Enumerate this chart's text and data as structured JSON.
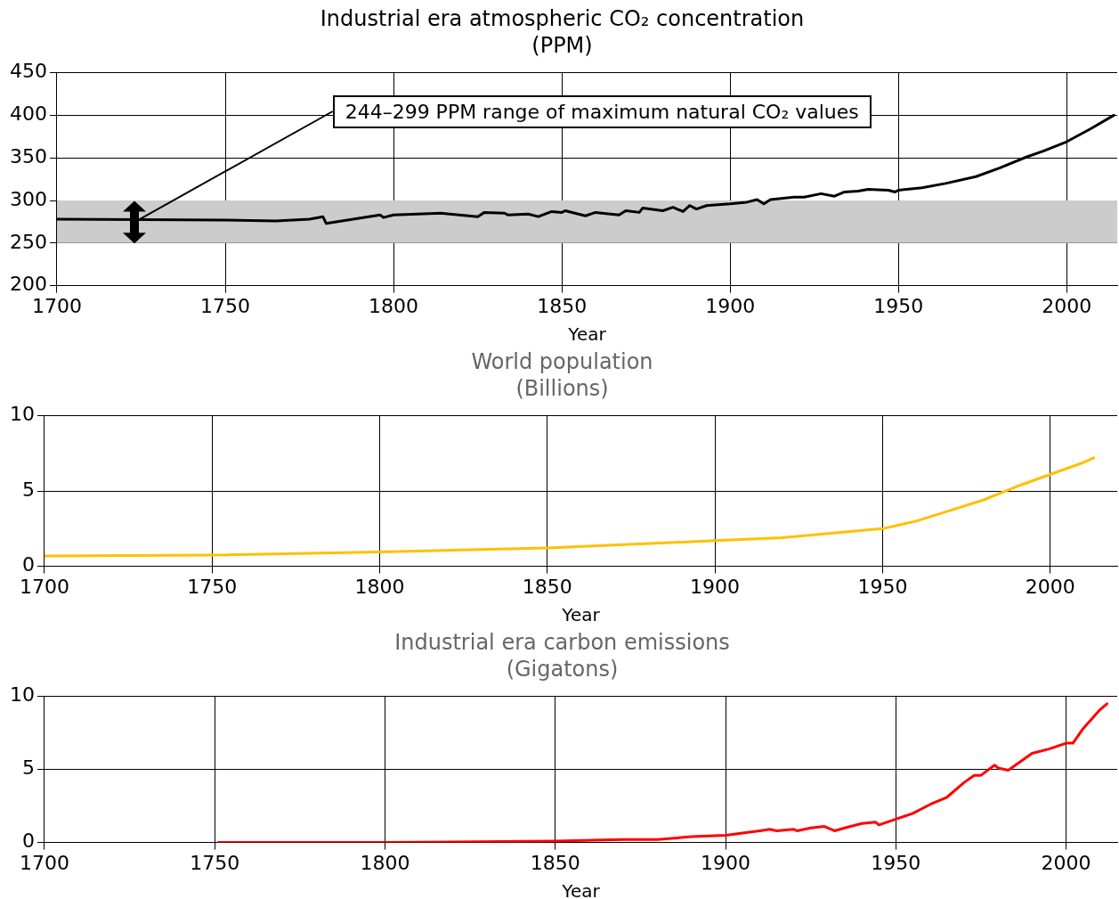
{
  "chart_data": [
    {
      "type": "line",
      "title": "Industrial era atmospheric CO₂ concentration",
      "subtitle": "(PPM)",
      "xlabel": "Year",
      "xlim": [
        1700,
        2015
      ],
      "xticks": [
        1700,
        1750,
        1800,
        1850,
        1900,
        1950,
        2000
      ],
      "ylim": [
        200,
        450
      ],
      "yticks": [
        200,
        250,
        300,
        350,
        400,
        450
      ],
      "grid": true,
      "legend": false,
      "marker": "none",
      "line_style": "solid",
      "bands": [
        {
          "axis": "y",
          "from": 250,
          "to": 300,
          "color": "#cccccc"
        }
      ],
      "annotations": [
        {
          "text": "244–299 PPM range of maximum natural CO₂ values",
          "x": 1723,
          "y": 275
        }
      ],
      "series": [
        {
          "color": "#000000",
          "x": [
            1700,
            1750,
            1765,
            1775,
            1779,
            1780,
            1796,
            1797,
            1800,
            1814,
            1825,
            1827,
            1833,
            1834,
            1840,
            1843,
            1847,
            1850,
            1851,
            1857,
            1860,
            1867,
            1869,
            1873,
            1874,
            1880,
            1883,
            1886,
            1888,
            1890,
            1893,
            1900,
            1905,
            1908,
            1910,
            1912,
            1919,
            1922,
            1927,
            1931,
            1934,
            1938,
            1941,
            1947,
            1949,
            1950,
            1957,
            1964,
            1973,
            1980,
            1988,
            1993,
            2000,
            2007,
            2014
          ],
          "values": [
            278,
            277,
            276,
            278,
            281,
            273,
            283,
            280,
            283,
            285,
            281,
            286,
            285,
            283,
            284,
            281,
            287,
            286,
            288,
            282,
            286,
            283,
            288,
            286,
            291,
            288,
            292,
            287,
            294,
            290,
            294,
            296,
            298,
            301,
            296,
            301,
            304,
            304,
            308,
            305,
            310,
            311,
            313,
            312,
            310,
            312,
            315,
            320,
            328,
            338,
            351,
            358,
            369,
            384,
            400
          ]
        }
      ]
    },
    {
      "type": "line",
      "title": "World population",
      "subtitle": "(Billions)",
      "xlabel": "Year",
      "xlim": [
        1700,
        2020
      ],
      "xticks": [
        1700,
        1750,
        1800,
        1850,
        1900,
        1950,
        2000
      ],
      "ylim": [
        0,
        10
      ],
      "yticks": [
        0,
        5,
        10
      ],
      "grid": true,
      "legend": false,
      "marker": "none",
      "line_style": "solid",
      "series": [
        {
          "color": "#ffc000",
          "x": [
            1700,
            1750,
            1800,
            1850,
            1900,
            1920,
            1950,
            1960,
            1970,
            1980,
            1990,
            2000,
            2010,
            2013
          ],
          "values": [
            0.68,
            0.74,
            0.95,
            1.22,
            1.7,
            1.9,
            2.5,
            3.0,
            3.7,
            4.4,
            5.3,
            6.1,
            6.9,
            7.2
          ]
        }
      ]
    },
    {
      "type": "line",
      "title": "Industrial era carbon emissions",
      "subtitle": "(Gigatons)",
      "xlabel": "Year",
      "xlim": [
        1700,
        2015
      ],
      "xticks": [
        1700,
        1750,
        1800,
        1850,
        1900,
        1950,
        2000
      ],
      "ylim": [
        0,
        10
      ],
      "yticks": [
        0,
        5,
        10
      ],
      "grid": true,
      "legend": false,
      "marker": "none",
      "line_style": "solid",
      "series": [
        {
          "color": "#ff0000",
          "x": [
            1751,
            1800,
            1850,
            1870,
            1880,
            1890,
            1900,
            1910,
            1913,
            1915,
            1920,
            1921,
            1925,
            1929,
            1932,
            1935,
            1940,
            1944,
            1945,
            1950,
            1955,
            1960,
            1965,
            1970,
            1973,
            1975,
            1979,
            1980,
            1983,
            1990,
            1995,
            2000,
            2002,
            2005,
            2010,
            2012
          ],
          "values": [
            0,
            0,
            0.1,
            0.2,
            0.2,
            0.4,
            0.5,
            0.8,
            0.9,
            0.8,
            0.9,
            0.8,
            1,
            1.1,
            0.8,
            1,
            1.3,
            1.4,
            1.2,
            1.6,
            2.0,
            2.6,
            3.1,
            4.1,
            4.6,
            4.6,
            5.3,
            5.1,
            4.95,
            6.1,
            6.4,
            6.8,
            6.8,
            7.8,
            9.1,
            9.5
          ]
        }
      ]
    }
  ]
}
